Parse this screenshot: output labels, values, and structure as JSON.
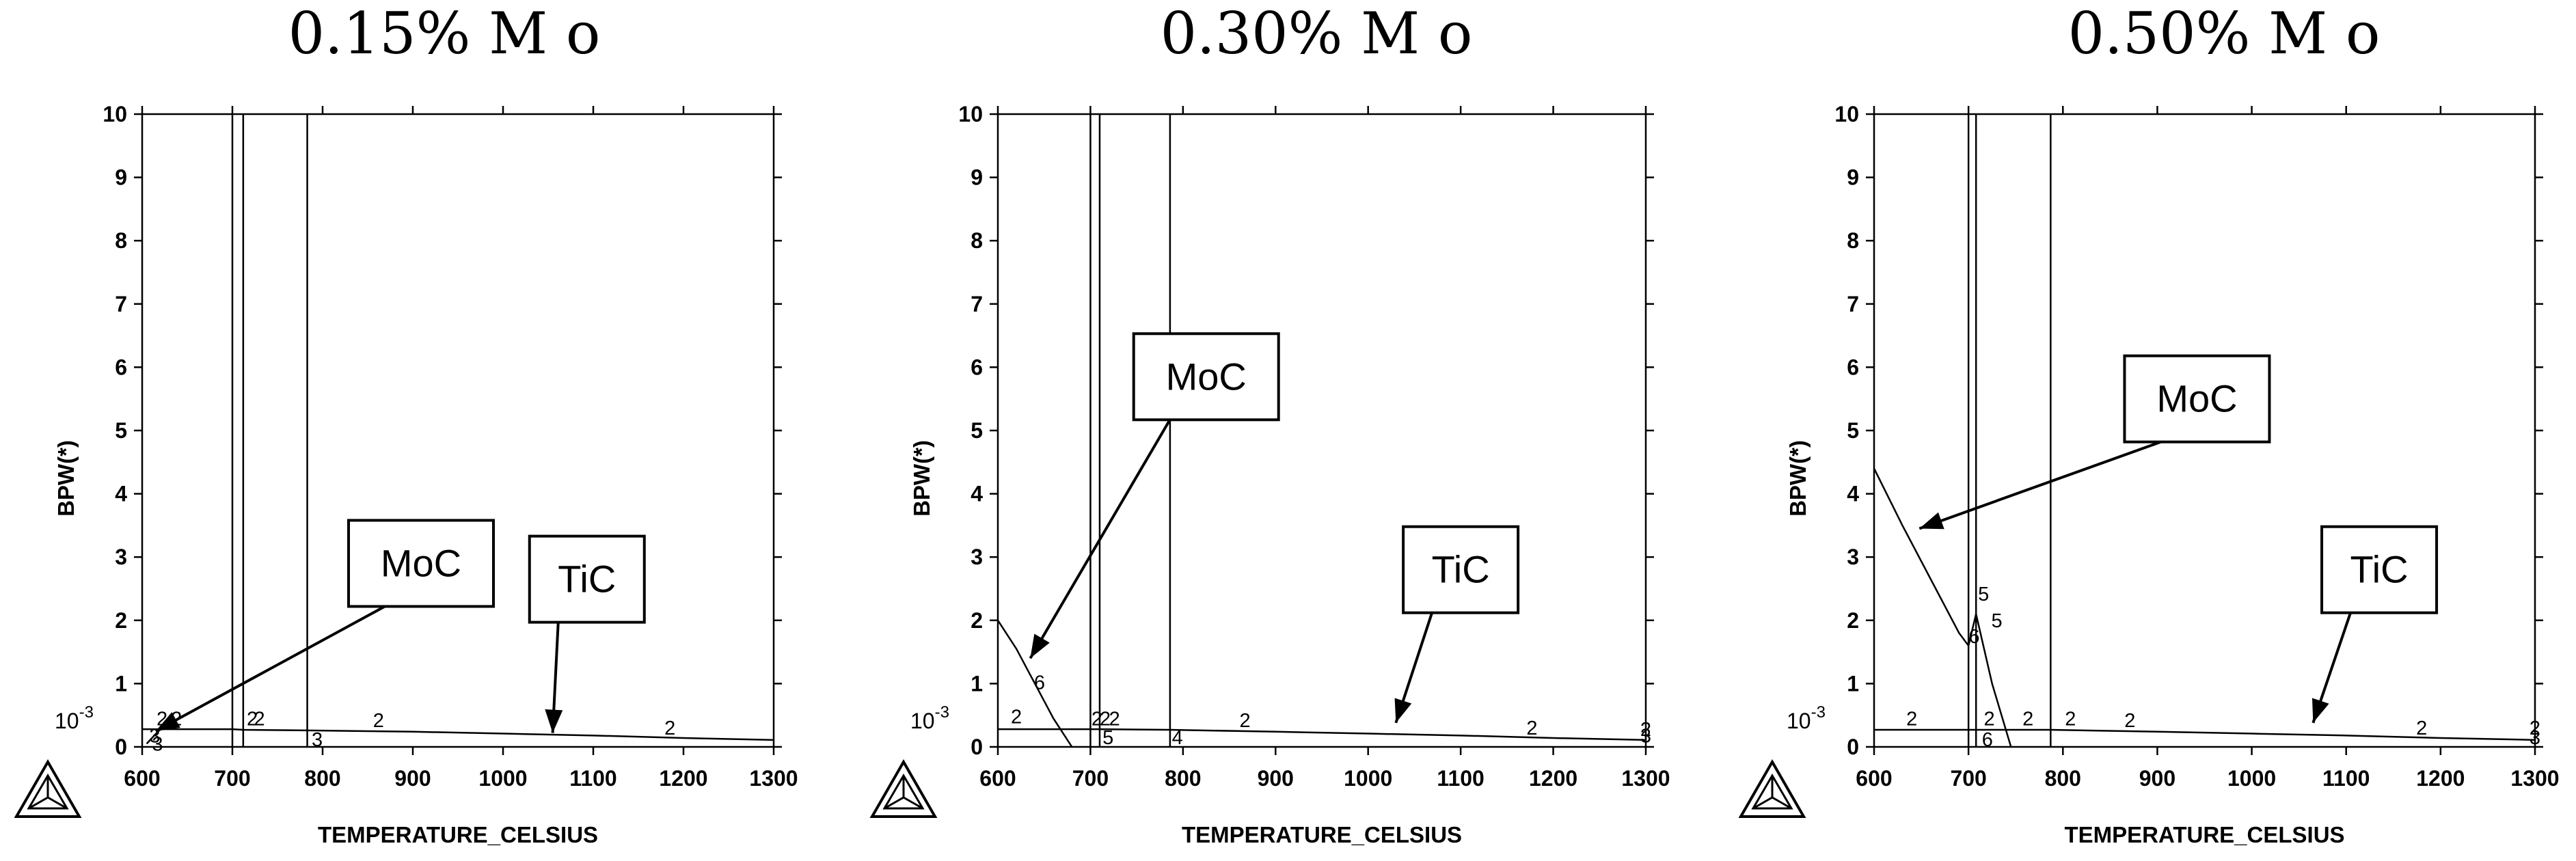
{
  "chart_data": [
    {
      "type": "line",
      "title": "0.15% M o",
      "xlabel": "TEMPERATURE_CELSIUS",
      "ylabel": "BPW(*)",
      "y_scale_note": "10-3",
      "xlim": [
        600,
        1300
      ],
      "ylim": [
        0,
        10
      ],
      "xticks": [
        600,
        700,
        800,
        900,
        1000,
        1100,
        1200,
        1300
      ],
      "yticks": [
        0,
        1,
        2,
        3,
        4,
        5,
        6,
        7,
        8,
        9,
        10
      ],
      "grid": false,
      "vertical_lines_x": [
        700,
        712,
        783
      ],
      "series": [
        {
          "label_marker": "2",
          "x": [
            600,
            700,
            712,
            783,
            900,
            1000,
            1100,
            1200,
            1300
          ],
          "y": [
            0.28,
            0.28,
            0.27,
            0.26,
            0.24,
            0.21,
            0.18,
            0.14,
            0.11
          ]
        },
        {
          "label_marker": "3",
          "x": [
            605,
            618,
            628
          ],
          "y": [
            0.05,
            0.25,
            0.35
          ]
        }
      ],
      "curve_labels": [
        {
          "text": "2",
          "x": 622,
          "y": 0.45
        },
        {
          "text": "2",
          "x": 638,
          "y": 0.45
        },
        {
          "text": "2",
          "x": 722,
          "y": 0.45
        },
        {
          "text": "2",
          "x": 730,
          "y": 0.45
        },
        {
          "text": "2",
          "x": 862,
          "y": 0.42
        },
        {
          "text": "2",
          "x": 1185,
          "y": 0.3
        },
        {
          "text": "3",
          "x": 614,
          "y": 0.18
        },
        {
          "text": "3",
          "x": 617,
          "y": 0.05
        },
        {
          "text": "3",
          "x": 794,
          "y": 0.12
        }
      ],
      "annotations": [
        {
          "text": "MoC",
          "box_x": 0.235,
          "box_y": 2.9,
          "arrow_x": 615,
          "arrow_y": 0.25
        },
        {
          "text": "TiC",
          "box_x": 1093,
          "box_y": 2.65,
          "arrow_x": 1055,
          "arrow_y": 0.22
        }
      ]
    },
    {
      "type": "line",
      "title": "0.30% M o",
      "xlabel": "TEMPERATURE_CELSIUS",
      "ylabel": "BPW(*)",
      "y_scale_note": "10-3",
      "xlim": [
        600,
        1300
      ],
      "ylim": [
        0,
        10
      ],
      "xticks": [
        600,
        700,
        800,
        900,
        1000,
        1100,
        1200,
        1300
      ],
      "yticks": [
        0,
        1,
        2,
        3,
        4,
        5,
        6,
        7,
        8,
        9,
        10
      ],
      "grid": false,
      "vertical_lines_x": [
        700,
        710,
        786
      ],
      "series": [
        {
          "label_marker": "2",
          "x": [
            600,
            700,
            710,
            786,
            900,
            1000,
            1100,
            1200,
            1300
          ],
          "y": [
            0.28,
            0.28,
            0.28,
            0.27,
            0.24,
            0.21,
            0.18,
            0.14,
            0.11
          ]
        },
        {
          "label_marker": "6",
          "x": [
            600,
            620,
            640,
            660,
            680
          ],
          "y": [
            2.0,
            1.55,
            1.0,
            0.45,
            0.0
          ]
        }
      ],
      "curve_labels": [
        {
          "text": "2",
          "x": 620,
          "y": 0.48
        },
        {
          "text": "2",
          "x": 707,
          "y": 0.45
        },
        {
          "text": "2",
          "x": 716,
          "y": 0.45
        },
        {
          "text": "2",
          "x": 726,
          "y": 0.45
        },
        {
          "text": "2",
          "x": 867,
          "y": 0.42
        },
        {
          "text": "2",
          "x": 1177,
          "y": 0.3
        },
        {
          "text": "2",
          "x": 1300,
          "y": 0.28
        },
        {
          "text": "6",
          "x": 645,
          "y": 1.02
        },
        {
          "text": "5",
          "x": 719,
          "y": 0.15
        },
        {
          "text": "4",
          "x": 794,
          "y": 0.15
        },
        {
          "text": "3",
          "x": 1300,
          "y": 0.18
        }
      ],
      "annotations": [
        {
          "text": "MoC",
          "box_x": 825,
          "box_y": 5.85,
          "arrow_x": 635,
          "arrow_y": 1.4
        },
        {
          "text": "TiC",
          "box_x": 1100,
          "box_y": 2.8,
          "arrow_x": 1030,
          "arrow_y": 0.38
        }
      ]
    },
    {
      "type": "line",
      "title": "0.50% M o",
      "xlabel": "TEMPERATURE_CELSIUS",
      "ylabel": "BPW(*)",
      "y_scale_note": "10-3",
      "xlim": [
        600,
        1300
      ],
      "ylim": [
        0,
        10
      ],
      "xticks": [
        600,
        700,
        800,
        900,
        1000,
        1100,
        1200,
        1300
      ],
      "yticks": [
        0,
        1,
        2,
        3,
        4,
        5,
        6,
        7,
        8,
        9,
        10
      ],
      "grid": false,
      "vertical_lines_x": [
        700,
        708,
        787
      ],
      "series": [
        {
          "label_marker": "2",
          "x": [
            600,
            700,
            708,
            787,
            900,
            1000,
            1100,
            1200,
            1300
          ],
          "y": [
            0.27,
            0.27,
            0.27,
            0.27,
            0.24,
            0.21,
            0.18,
            0.14,
            0.11
          ]
        },
        {
          "label_marker": "5",
          "x": [
            600,
            630,
            660,
            690,
            700,
            708,
            725,
            745
          ],
          "y": [
            4.4,
            3.5,
            2.65,
            1.8,
            1.6,
            2.1,
            1.0,
            0.0
          ]
        }
      ],
      "curve_labels": [
        {
          "text": "2",
          "x": 640,
          "y": 0.45
        },
        {
          "text": "2",
          "x": 722,
          "y": 0.45
        },
        {
          "text": "2",
          "x": 763,
          "y": 0.45
        },
        {
          "text": "2",
          "x": 808,
          "y": 0.45
        },
        {
          "text": "2",
          "x": 871,
          "y": 0.42
        },
        {
          "text": "2",
          "x": 1180,
          "y": 0.3
        },
        {
          "text": "2",
          "x": 1300,
          "y": 0.3
        },
        {
          "text": "5",
          "x": 716,
          "y": 2.42
        },
        {
          "text": "5",
          "x": 730,
          "y": 2.0
        },
        {
          "text": "6",
          "x": 706,
          "y": 1.75
        },
        {
          "text": "6",
          "x": 720,
          "y": 0.12
        },
        {
          "text": "3",
          "x": 1300,
          "y": 0.15
        }
      ],
      "annotations": [
        {
          "text": "MoC",
          "box_x": 942,
          "box_y": 5.5,
          "arrow_x": 648,
          "arrow_y": 3.45
        },
        {
          "text": "TiC",
          "box_x": 1135,
          "box_y": 2.8,
          "arrow_x": 1065,
          "arrow_y": 0.38
        }
      ]
    }
  ]
}
